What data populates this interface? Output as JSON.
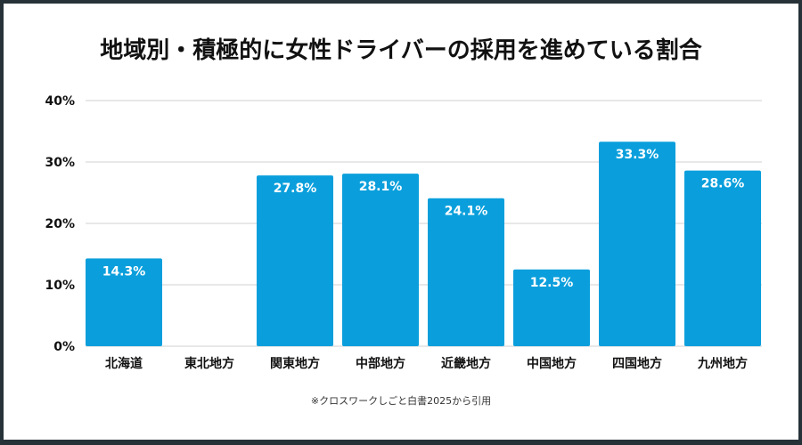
{
  "chart_data": {
    "type": "bar",
    "title": "地域別・積極的に女性ドライバーの採用を進めている割合",
    "categories": [
      "北海道",
      "東北地方",
      "関東地方",
      "中部地方",
      "近畿地方",
      "中国地方",
      "四国地方",
      "九州地方"
    ],
    "values": [
      14.3,
      null,
      27.8,
      28.1,
      24.1,
      12.5,
      33.3,
      28.6
    ],
    "data_labels": [
      "14.3%",
      "",
      "27.8%",
      "28.1%",
      "24.1%",
      "12.5%",
      "33.3%",
      "28.6%"
    ],
    "ylim": [
      0,
      40
    ],
    "yticks": [
      0,
      10,
      20,
      30,
      40
    ],
    "ytick_labels": [
      "0%",
      "10%",
      "20%",
      "30%",
      "40%"
    ],
    "grid": true,
    "bar_color": "#0a9fdc",
    "note": "※クロスワークしごと白書2025から引用"
  }
}
